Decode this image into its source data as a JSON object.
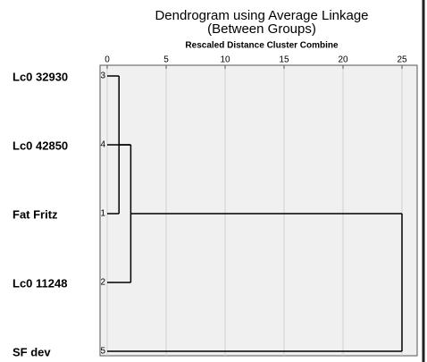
{
  "chart_data": {
    "type": "dendrogram",
    "title": [
      "Dendrogram using Average Linkage",
      "(Between Groups)"
    ],
    "x_label": "Rescaled Distance Cluster Combine",
    "xlim": [
      0,
      25
    ],
    "xticks": [
      0,
      5,
      10,
      15,
      20,
      25
    ],
    "grid": true,
    "color": "#000000",
    "leaves": [
      {
        "label": "Lc0 32930",
        "case": 3
      },
      {
        "label": "Lc0 42850",
        "case": 4
      },
      {
        "label": "Fat Fritz",
        "case": 1
      },
      {
        "label": "Lc0 11248",
        "case": 2
      },
      {
        "label": "SF dev",
        "case": 5
      }
    ],
    "merges": [
      {
        "children": [
          0,
          2
        ],
        "distance": 1
      },
      {
        "children": [
          5,
          1
        ],
        "distance": 2
      },
      {
        "children": [
          6,
          3
        ],
        "distance": 2
      },
      {
        "children": [
          7,
          4
        ],
        "distance": 25
      }
    ]
  }
}
